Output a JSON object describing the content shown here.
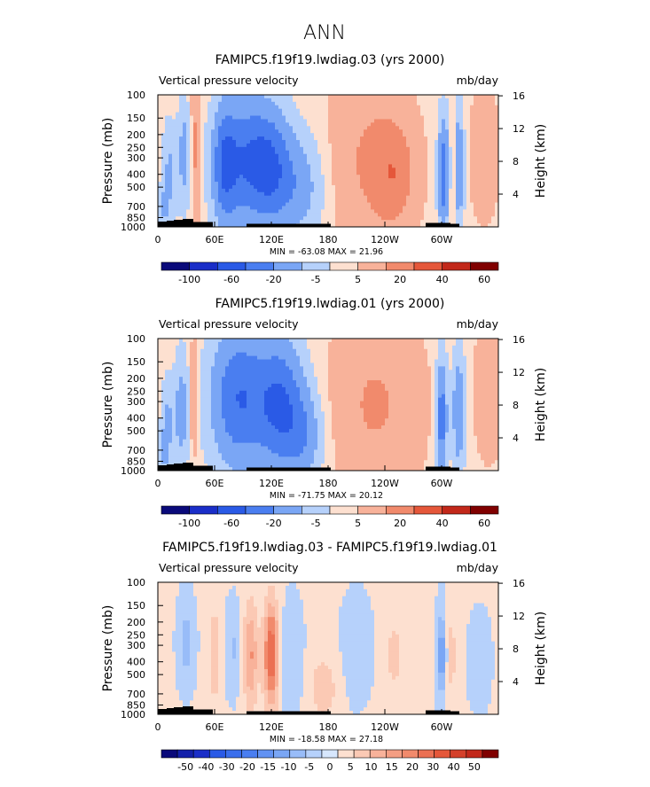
{
  "suptitle": "ANN",
  "colors": {
    "scale11": [
      "#0a0a7a",
      "#1a2ec8",
      "#2a5ae6",
      "#4a7ef0",
      "#7aa6f5",
      "#b6d1fb",
      "#fde0d0",
      "#f8b29a",
      "#f18a6c",
      "#e5573a",
      "#c2281a",
      "#800000"
    ],
    "scale21": [
      "#0a0a7a",
      "#1320aa",
      "#1a2ec8",
      "#2a5ae6",
      "#3a6eec",
      "#4a7ef0",
      "#6292f3",
      "#7aa6f5",
      "#98bcf8",
      "#b6d1fb",
      "#d7e7fd",
      "#fde0d0",
      "#fbc9b4",
      "#f8b29a",
      "#f49e83",
      "#f18a6c",
      "#eb7053",
      "#e5573a",
      "#d4402a",
      "#c2281a",
      "#800000"
    ]
  },
  "chart_data": [
    {
      "type": "heatmap",
      "title": "FAMIPC5.f19f19.lwdiag.03 (yrs 2000)",
      "left_string": "Vertical pressure velocity",
      "right_string": "mb/day",
      "ylabel": "Pressure (mb)",
      "y2label": "Height (km)",
      "x_ticks": [
        "0",
        "60E",
        "120E",
        "180",
        "120W",
        "60W"
      ],
      "y_ticks": [
        "100",
        "150",
        "200",
        "250",
        "300",
        "400",
        "500",
        "700",
        "850",
        "1000"
      ],
      "y2_ticks": [
        "16",
        "12",
        "8",
        "4"
      ],
      "min_max_text": "MIN = -63.08   MAX =  21.96",
      "levels": [
        "-100",
        "-60",
        "-20",
        "-5",
        "5",
        "20",
        "40",
        "60"
      ],
      "level_bins": 12,
      "blobs": [
        {
          "x": 28,
          "y": 0.45,
          "rx": 7,
          "ry": 0.4,
          "v": -30
        },
        {
          "x": 12,
          "y": 0.6,
          "rx": 8,
          "ry": 0.4,
          "v": -25
        },
        {
          "x": 40,
          "y": 0.4,
          "rx": 5,
          "ry": 0.5,
          "v": 25
        },
        {
          "x": 90,
          "y": 0.5,
          "rx": 28,
          "ry": 0.5,
          "v": -55
        },
        {
          "x": 70,
          "y": 0.55,
          "rx": 12,
          "ry": 0.45,
          "v": -40
        },
        {
          "x": 120,
          "y": 0.55,
          "rx": 22,
          "ry": 0.45,
          "v": -50
        },
        {
          "x": 150,
          "y": 0.7,
          "rx": 25,
          "ry": 0.4,
          "v": -30
        },
        {
          "x": 225,
          "y": 0.5,
          "rx": 40,
          "ry": 0.62,
          "v": 20
        },
        {
          "x": 250,
          "y": 0.6,
          "rx": 20,
          "ry": 0.35,
          "v": 25
        },
        {
          "x": 302,
          "y": 0.6,
          "rx": 6,
          "ry": 0.45,
          "v": -55
        },
        {
          "x": 318,
          "y": 0.55,
          "rx": 6,
          "ry": 0.45,
          "v": -40
        },
        {
          "x": 312,
          "y": 0.6,
          "rx": 3,
          "ry": 0.4,
          "v": 20
        },
        {
          "x": 345,
          "y": 0.45,
          "rx": 14,
          "ry": 0.45,
          "v": 14
        },
        {
          "x": 6,
          "y": 0.85,
          "rx": 5,
          "ry": 0.15,
          "v": -20
        }
      ]
    },
    {
      "type": "heatmap",
      "title": "FAMIPC5.f19f19.lwdiag.01 (yrs 2000)",
      "left_string": "Vertical pressure velocity",
      "right_string": "mb/day",
      "ylabel": "Pressure (mb)",
      "y2label": "Height (km)",
      "x_ticks": [
        "0",
        "60E",
        "120E",
        "180",
        "120W",
        "60W"
      ],
      "y_ticks": [
        "100",
        "150",
        "200",
        "250",
        "300",
        "400",
        "500",
        "700",
        "850",
        "1000"
      ],
      "y2_ticks": [
        "16",
        "12",
        "8",
        "4"
      ],
      "min_max_text": "MIN = -71.75   MAX =  20.12",
      "levels": [
        "-100",
        "-60",
        "-20",
        "-5",
        "5",
        "20",
        "40",
        "60"
      ],
      "level_bins": 12,
      "blobs": [
        {
          "x": 25,
          "y": 0.55,
          "rx": 8,
          "ry": 0.45,
          "v": -30
        },
        {
          "x": 10,
          "y": 0.65,
          "rx": 7,
          "ry": 0.35,
          "v": -25
        },
        {
          "x": 38,
          "y": 0.45,
          "rx": 5,
          "ry": 0.45,
          "v": 20
        },
        {
          "x": 85,
          "y": 0.45,
          "rx": 30,
          "ry": 0.55,
          "v": -60
        },
        {
          "x": 130,
          "y": 0.5,
          "rx": 25,
          "ry": 0.5,
          "v": -60
        },
        {
          "x": 155,
          "y": 0.75,
          "rx": 20,
          "ry": 0.35,
          "v": -30
        },
        {
          "x": 230,
          "y": 0.5,
          "rx": 45,
          "ry": 0.6,
          "v": 20
        },
        {
          "x": 300,
          "y": 0.6,
          "rx": 6,
          "ry": 0.45,
          "v": -55
        },
        {
          "x": 318,
          "y": 0.55,
          "rx": 7,
          "ry": 0.45,
          "v": -40
        },
        {
          "x": 350,
          "y": 0.4,
          "rx": 14,
          "ry": 0.45,
          "v": 15
        },
        {
          "x": 6,
          "y": 0.85,
          "rx": 5,
          "ry": 0.15,
          "v": -20
        }
      ]
    },
    {
      "type": "heatmap",
      "title": "FAMIPC5.f19f19.lwdiag.03 - FAMIPC5.f19f19.lwdiag.01",
      "left_string": "Vertical pressure velocity",
      "right_string": "mb/day",
      "ylabel": "Pressure (mb)",
      "y2label": "Height (km)",
      "x_ticks": [
        "0",
        "60E",
        "120E",
        "180",
        "120W",
        "60W"
      ],
      "y_ticks": [
        "100",
        "150",
        "200",
        "250",
        "300",
        "400",
        "500",
        "700",
        "850",
        "1000"
      ],
      "y2_ticks": [
        "16",
        "12",
        "8",
        "4"
      ],
      "min_max_text": "MIN = -18.58   MAX =  27.18",
      "levels": [
        "-50",
        "-40",
        "-30",
        "-20",
        "-15",
        "-10",
        "-5",
        "0",
        "5",
        "10",
        "15",
        "20",
        "30",
        "40",
        "50"
      ],
      "level_bins": 21,
      "blobs": [
        {
          "x": 120,
          "y": 0.55,
          "rx": 8,
          "ry": 0.4,
          "v": 25
        },
        {
          "x": 98,
          "y": 0.55,
          "rx": 8,
          "ry": 0.4,
          "v": 15
        },
        {
          "x": 60,
          "y": 0.55,
          "rx": 6,
          "ry": 0.35,
          "v": 10
        },
        {
          "x": 30,
          "y": 0.45,
          "rx": 8,
          "ry": 0.3,
          "v": -8
        },
        {
          "x": 80,
          "y": 0.5,
          "rx": 8,
          "ry": 0.3,
          "v": -6
        },
        {
          "x": 140,
          "y": 0.6,
          "rx": 12,
          "ry": 0.4,
          "v": -5
        },
        {
          "x": 175,
          "y": 0.8,
          "rx": 15,
          "ry": 0.25,
          "v": 8
        },
        {
          "x": 210,
          "y": 0.5,
          "rx": 15,
          "ry": 0.35,
          "v": -4
        },
        {
          "x": 250,
          "y": 0.55,
          "rx": 12,
          "ry": 0.35,
          "v": 6
        },
        {
          "x": 300,
          "y": 0.55,
          "rx": 5,
          "ry": 0.3,
          "v": -15
        },
        {
          "x": 310,
          "y": 0.55,
          "rx": 5,
          "ry": 0.3,
          "v": 8
        },
        {
          "x": 340,
          "y": 0.6,
          "rx": 10,
          "ry": 0.3,
          "v": -5
        }
      ]
    }
  ]
}
